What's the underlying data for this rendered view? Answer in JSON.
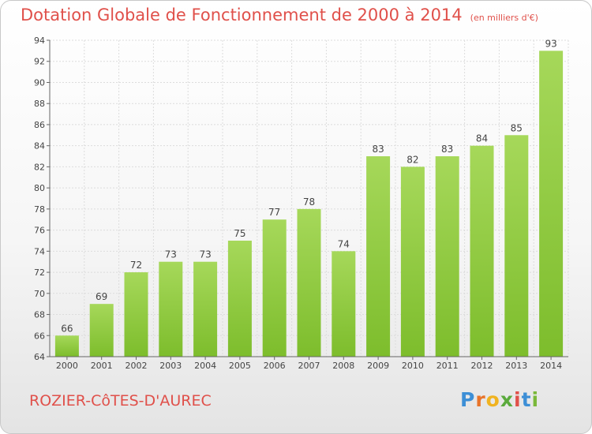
{
  "title": "Dotation Globale de Fonctionnement de 2000 à 2014",
  "unit": "(en milliers d'€)",
  "commune": "ROZIER-CôTES-D'AUREC",
  "logo": {
    "letters": [
      "P",
      "r",
      "o",
      "x",
      "i",
      "t",
      "i"
    ],
    "colors": [
      "#3d8fd6",
      "#e8742a",
      "#f0b320",
      "#5aaa3c",
      "#e0504a",
      "#3d8fd6",
      "#7ab83a"
    ]
  },
  "colors": {
    "bar": "#7dbd2c",
    "bar_light": "#a6d85a",
    "title": "#e0504a"
  },
  "chart_data": {
    "type": "bar",
    "categories": [
      "2000",
      "2001",
      "2002",
      "2003",
      "2004",
      "2005",
      "2006",
      "2007",
      "2008",
      "2009",
      "2010",
      "2011",
      "2012",
      "2013",
      "2014"
    ],
    "values": [
      66,
      69,
      72,
      73,
      73,
      75,
      77,
      78,
      74,
      83,
      82,
      83,
      84,
      85,
      93
    ],
    "title": "Dotation Globale de Fonctionnement de 2000 à 2014",
    "ylim": [
      64,
      94
    ],
    "yticks": [
      64,
      66,
      68,
      70,
      72,
      74,
      76,
      78,
      80,
      82,
      84,
      86,
      88,
      90,
      92,
      94
    ],
    "grid": true
  }
}
